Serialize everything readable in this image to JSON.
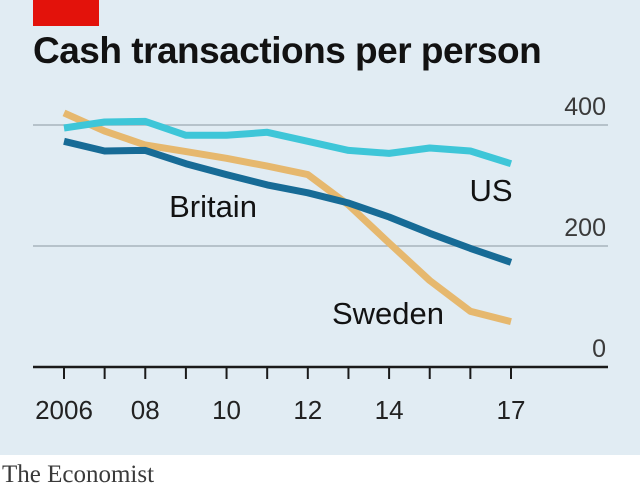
{
  "title": "Cash transactions per person",
  "source": "The Economist",
  "colors": {
    "background": "#e1ecf3",
    "tag": "#e3120b",
    "grid": "#a8b4bc",
    "axis": "#1a1a1a",
    "text": "#121212"
  },
  "chart_data": {
    "type": "line",
    "title": "Cash transactions per person",
    "xlim": [
      2006,
      2017
    ],
    "ylim": [
      0,
      400
    ],
    "y_ticks": [
      0,
      200,
      400
    ],
    "y_tick_labels": [
      "0",
      "200",
      "400"
    ],
    "x_ticks": [
      2006,
      2008,
      2010,
      2012,
      2014,
      2017
    ],
    "x_tick_labels": [
      "2006",
      "08",
      "10",
      "12",
      "14",
      "17"
    ],
    "x_minor_ticks": [
      2006,
      2007,
      2008,
      2009,
      2010,
      2011,
      2012,
      2013,
      2014,
      2015,
      2016,
      2017
    ],
    "grid": true,
    "legend": "direct labels",
    "series": [
      {
        "name": "US",
        "color": "#3ec6d8",
        "x": [
          2006,
          2007,
          2008,
          2009,
          2010,
          2011,
          2012,
          2013,
          2014,
          2015,
          2016,
          2017
        ],
        "values": [
          395,
          405,
          406,
          383,
          383,
          388,
          373,
          358,
          353,
          362,
          357,
          336
        ]
      },
      {
        "name": "Britain",
        "color": "#176b96",
        "x": [
          2006,
          2007,
          2008,
          2009,
          2010,
          2011,
          2012,
          2013,
          2014,
          2015,
          2016,
          2017
        ],
        "values": [
          373,
          357,
          358,
          336,
          318,
          301,
          288,
          271,
          248,
          221,
          196,
          173
        ]
      },
      {
        "name": "Sweden",
        "color": "#e6b86e",
        "x": [
          2006,
          2007,
          2008,
          2009,
          2010,
          2011,
          2012,
          2013,
          2014,
          2015,
          2016,
          2017
        ],
        "values": [
          420,
          390,
          367,
          356,
          345,
          332,
          318,
          268,
          205,
          143,
          92,
          75
        ]
      }
    ]
  }
}
